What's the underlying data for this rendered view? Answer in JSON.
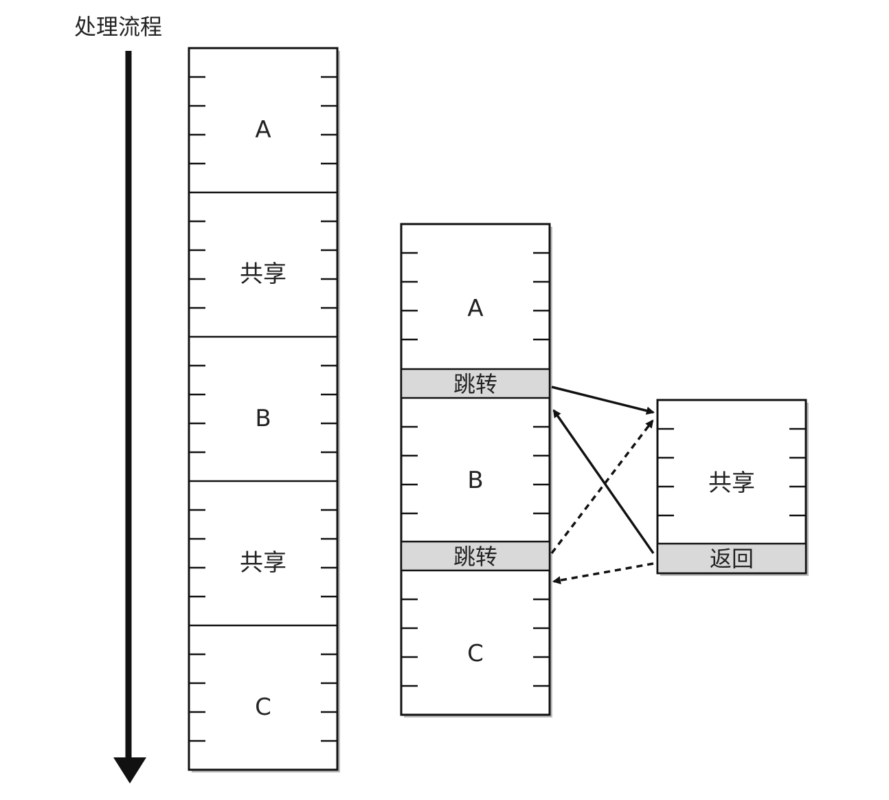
{
  "flow_label": "处理流程",
  "left_column": {
    "segments": [
      "A",
      "共享",
      "B",
      "共享",
      "C"
    ]
  },
  "middle_column": {
    "segments": [
      "A",
      "跳转",
      "B",
      "跳转",
      "C"
    ]
  },
  "right_box": {
    "segments": [
      "共享",
      "返回"
    ]
  }
}
